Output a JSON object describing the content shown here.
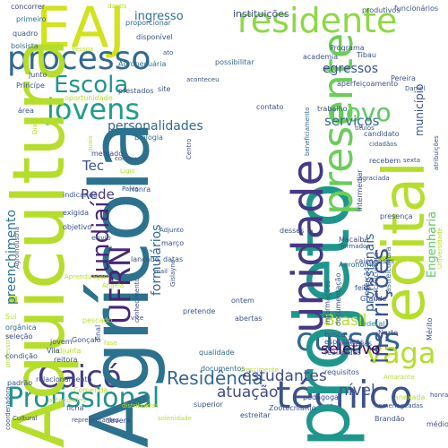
{
  "words": [
    {
      "text": "EAJ",
      "color": "#d2e21b"
    },
    {
      "text": "residente",
      "color": "#8fd744"
    },
    {
      "text": "processo",
      "color": "#31688e"
    },
    {
      "text": "Escola",
      "color": "#1f968b"
    },
    {
      "text": "jovens",
      "color": "#1f9e89"
    },
    {
      "text": "novo",
      "color": "#5ec962"
    },
    {
      "text": "cursos",
      "color": "#31688e"
    },
    {
      "text": "Caicó",
      "color": "#443983"
    },
    {
      "text": "vaga",
      "color": "#b5de2b"
    },
    {
      "text": "Profissional",
      "color": "#21918c"
    },
    {
      "text": "técnico",
      "color": "#3b528b"
    },
    {
      "text": "edital",
      "color": "#b5de2b"
    },
    {
      "text": "projeto",
      "color": "#1f968b"
    },
    {
      "text": "Agrícola",
      "color": "#2c728e"
    },
    {
      "text": "Aquicultura",
      "color": "#b5de2b"
    },
    {
      "text": "unidade",
      "color": "#443983"
    },
    {
      "text": "presente",
      "color": "#6ccd5a"
    },
    {
      "text": "inscrições",
      "color": "#3b528b"
    },
    {
      "text": "UFRN",
      "color": "#482677"
    },
    {
      "text": "Jundiaí",
      "color": "#482677"
    },
    {
      "text": "Residência",
      "color": "#31688e"
    },
    {
      "text": "estudantes",
      "color": "#3e4a89"
    },
    {
      "text": "atuação",
      "color": "#3e4a89"
    },
    {
      "text": "ingresso",
      "color": "#2c728e"
    },
    {
      "text": "instituições",
      "color": "#3b528b"
    },
    {
      "text": "egressos",
      "color": "#3b528b"
    },
    {
      "text": "serviços",
      "color": "#31688e"
    },
    {
      "text": "personalidades",
      "color": "#31688e"
    },
    {
      "text": "Tec",
      "color": "#3b528b"
    },
    {
      "text": "Rede",
      "color": "#443983"
    },
    {
      "text": "seletivo",
      "color": "#440154"
    },
    {
      "text": "nível",
      "color": "#3b528b"
    },
    {
      "text": "Brasil",
      "color": "#b5de2b"
    },
    {
      "text": "formulários",
      "color": "#31688e"
    },
    {
      "text": "preenchimento",
      "color": "#2c728e"
    },
    {
      "text": "profissionais",
      "color": "#31688e"
    },
    {
      "text": "Engenharia",
      "color": "#5ec962"
    },
    {
      "text": "município",
      "color": "#3b528b"
    },
    {
      "text": "documentos",
      "color": "#31688e"
    },
    {
      "text": "qualidade",
      "color": "#31688e"
    },
    {
      "text": "conhecimento",
      "color": "#3e4a89"
    },
    {
      "text": "Agropecuária",
      "color": "#2c728e"
    },
    {
      "text": "proporcionar",
      "color": "#31688e"
    },
    {
      "text": "possibilitar",
      "color": "#31688e"
    },
    {
      "text": "Norte",
      "color": "#3e4a89"
    },
    {
      "text": "Grande",
      "color": "#3b528b"
    },
    {
      "text": "Federal",
      "color": "#1f968b"
    },
    {
      "text": "Macaíba",
      "color": "#3e4a89"
    },
    {
      "text": "Agronomia",
      "color": "#2c728e"
    },
    {
      "text": "Zootecnia",
      "color": "#3b528b"
    },
    {
      "text": "Comenda",
      "color": "#b5de2b"
    },
    {
      "text": "Programa",
      "color": "#3b528b"
    },
    {
      "text": "Tibau",
      "color": "#3e4a89"
    },
    {
      "text": "primeiro",
      "color": "#2c728e"
    },
    {
      "text": "quadro",
      "color": "#3b528b"
    },
    {
      "text": "bolsista",
      "color": "#31688e"
    },
    {
      "text": "concorrer",
      "color": "#3e4a89"
    },
    {
      "text": "área",
      "color": "#3b528b"
    },
    {
      "text": "Biologia",
      "color": "#2c728e"
    },
    {
      "text": "mercado",
      "color": "#3e4a89"
    },
    {
      "text": "envio",
      "color": "#31688e"
    },
    {
      "text": "março",
      "color": "#3e4a89"
    },
    {
      "text": "datas",
      "color": "#3b528b"
    },
    {
      "text": "contato",
      "color": "#3b528b"
    },
    {
      "text": "ontem",
      "color": "#3b528b"
    },
    {
      "text": "abertas",
      "color": "#3b528b"
    },
    {
      "text": "pedagoga",
      "color": "#3e4a89"
    },
    {
      "text": "ficha",
      "color": "#3b528b"
    },
    {
      "text": "deverá",
      "color": "#3e4a89"
    },
    {
      "text": "superior",
      "color": "#3b528b"
    },
    {
      "text": "estreitar",
      "color": "#3b528b"
    },
    {
      "text": "Brandão",
      "color": "#3b528b"
    },
    {
      "text": "homenageadas",
      "color": "#3b528b"
    },
    {
      "text": "Cultural",
      "color": "#3e4a89"
    },
    {
      "text": "representantes",
      "color": "#3e4a89"
    },
    {
      "text": "solenidade",
      "color": "#b5de2b"
    },
    {
      "text": "médio",
      "color": "#3b528b"
    },
    {
      "text": "Mérito",
      "color": "#3b528b"
    },
    {
      "text": "Universidade",
      "color": "#b5de2b"
    },
    {
      "text": "funcionários",
      "color": "#3b528b"
    },
    {
      "text": "produtivos",
      "color": "#3b528b"
    },
    {
      "text": "Pereira",
      "color": "#3b528b"
    },
    {
      "text": "academia",
      "color": "#3b528b"
    },
    {
      "text": "trabalho",
      "color": "#3b528b"
    },
    {
      "text": "candidato",
      "color": "#3b528b"
    },
    {
      "text": "atribuições",
      "color": "#3b528b"
    },
    {
      "text": "beneficiamento",
      "color": "#31688e"
    },
    {
      "text": "agraciada",
      "color": "#3b528b"
    },
    {
      "text": "carcinicultura",
      "color": "#3b528b"
    },
    {
      "text": "astreicultura",
      "color": "#31688e"
    },
    {
      "text": "informações",
      "color": "#3b528b"
    },
    {
      "text": "documentação",
      "color": "#3b528b"
    },
    {
      "text": "empresas",
      "color": "#3b528b"
    },
    {
      "text": "especificas",
      "color": "#3b528b"
    },
    {
      "text": "realizadas",
      "color": "#3b528b"
    },
    {
      "text": "busca",
      "color": "#3b528b"
    },
    {
      "text": "inserção",
      "color": "#3b528b"
    },
    {
      "text": "anexada",
      "color": "#b5de2b"
    },
    {
      "text": "honraria",
      "color": "#3b528b"
    },
    {
      "text": "requisitos",
      "color": "#3b528b"
    },
    {
      "text": "Sul",
      "color": "#b5de2b"
    },
    {
      "text": "orgânica",
      "color": "#31688e"
    },
    {
      "text": "professora",
      "color": "#b5de2b"
    },
    {
      "text": "seleção",
      "color": "#3e4a89"
    },
    {
      "text": "condição",
      "color": "#3b528b"
    },
    {
      "text": "padrão",
      "color": "#3b528b"
    },
    {
      "text": "coordenadora",
      "color": "#3b528b"
    },
    {
      "text": "relacionamento",
      "color": "#3b528b"
    },
    {
      "text": "crescimento",
      "color": "#b5de2b"
    },
    {
      "text": "Gonçalo",
      "color": "#3b528b"
    },
    {
      "text": "adjunta",
      "color": "#b5de2b"
    },
    {
      "text": "reitora",
      "color": "#3b528b"
    },
    {
      "text": "Vila",
      "color": "#3b528b"
    },
    {
      "text": "jovem",
      "color": "#3b528b"
    },
    {
      "text": "pescado",
      "color": "#b5de2b"
    },
    {
      "text": "lançado",
      "color": "#3b528b"
    },
    {
      "text": "objetivo",
      "color": "#3b528b"
    },
    {
      "text": "exigida",
      "color": "#3b528b"
    },
    {
      "text": "indicando",
      "color": "#3b528b"
    },
    {
      "text": "prestados",
      "color": "#3b528b"
    },
    {
      "text": "oportunidade",
      "color": "#b5de2b"
    },
    {
      "text": "aperfeiçoamento",
      "color": "#3b528b"
    },
    {
      "text": "Princípe",
      "color": "#3b528b"
    },
    {
      "text": "junto",
      "color": "#3b528b"
    },
    {
      "text": "disponível",
      "color": "#3b528b"
    },
    {
      "text": "Gislayne",
      "color": "#3b528b"
    },
    {
      "text": "Agroindústria",
      "color": "#3b528b"
    },
    {
      "text": "recebem",
      "color": "#3b528b"
    },
    {
      "text": "caicoenses",
      "color": "#3b528b"
    },
    {
      "text": "cidadãos",
      "color": "#3b528b"
    },
    {
      "text": "presença",
      "color": "#3b528b"
    },
    {
      "text": "intermediar",
      "color": "#3b528b"
    },
    {
      "text": "formados",
      "color": "#3b528b"
    },
    {
      "text": "desses",
      "color": "#3b528b"
    },
    {
      "text": "Honra",
      "color": "#3b528b"
    },
    {
      "text": "final",
      "color": "#3b528b"
    },
    {
      "text": "pretende",
      "color": "#3b528b"
    },
    {
      "text": "feira",
      "color": "#3b528b"
    },
    {
      "text": "Amarante",
      "color": "#b5de2b"
    },
    {
      "text": "Rio",
      "color": "#3b528b"
    },
    {
      "text": "Dias",
      "color": "#b5de2b"
    },
    {
      "text": "dantis",
      "color": "#b5de2b"
    },
    {
      "text": "Daniel",
      "color": "#3b528b"
    },
    {
      "text": "sexta",
      "color": "#3b528b"
    },
    {
      "text": "Adjunto",
      "color": "#3b528b"
    },
    {
      "text": "vice",
      "color": "#3b528b"
    },
    {
      "text": "mail",
      "color": "#3b528b"
    },
    {
      "text": "Paiva",
      "color": "#3b528b"
    },
    {
      "text": "contou",
      "color": "#3b528b"
    },
    {
      "text": "Centro",
      "color": "#3b528b"
    },
    {
      "text": "aconteceu",
      "color": "#3b528b"
    },
    {
      "text": "site",
      "color": "#3b528b"
    },
    {
      "text": "fase",
      "color": "#b5de2b"
    },
    {
      "text": "ato",
      "color": "#3b528b"
    },
    {
      "text": "quais",
      "color": "#b5de2b"
    },
    {
      "text": "Pessoa",
      "color": "#b5de2b"
    },
    {
      "text": "Ângela",
      "color": "#b5de2b"
    },
    {
      "text": "autoridades",
      "color": "#b5de2b"
    },
    {
      "text": "distribuídas",
      "color": "#b5de2b"
    },
    {
      "text": "títulos",
      "color": "#3b528b"
    },
    {
      "text": "Lígio",
      "color": "#b5de2b"
    },
    {
      "text": "Aprendizagem",
      "color": "#b5de2b"
    }
  ]
}
